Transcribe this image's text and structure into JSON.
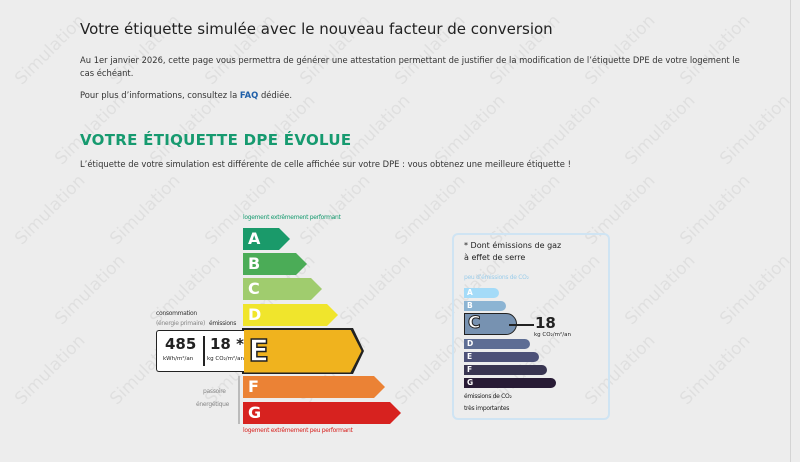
{
  "watermark": "Simulation",
  "header": {
    "title": "Votre étiquette simulée avec le nouveau facteur de conversion",
    "intro": "Au 1er janvier 2026, cette page vous permettra de générer une attestation permettant de justifier de la modification de l’étiquette DPE de votre logement le",
    "intro2": "cas échéant.",
    "info_prefix": "Pour plus d’informations, consultez la ",
    "faq_link": "FAQ",
    "info_suffix": " dédiée."
  },
  "section": {
    "title": "VOTRE ÉTIQUETTE DPE ÉVOLUE",
    "text": "L’étiquette de votre simulation est différente de celle affichée sur votre DPE : vous obtenez une meilleure étiquette !"
  },
  "dpe": {
    "top_label": "logement extrêmement performant",
    "bottom_label": "logement extrêmement peu performant",
    "classes": [
      {
        "letter": "A",
        "color": "#1a9a6a"
      },
      {
        "letter": "B",
        "color": "#4bac57"
      },
      {
        "letter": "C",
        "color": "#a0cc6e"
      },
      {
        "letter": "D",
        "color": "#f0e52c"
      },
      {
        "letter": "E",
        "color": "#f0b31e"
      },
      {
        "letter": "F",
        "color": "#eb8235"
      },
      {
        "letter": "G",
        "color": "#d7221f"
      }
    ],
    "current": "E",
    "consumption_label": "consommation",
    "consumption_sub": "(énergie primaire)",
    "emissions_label": "émissions",
    "consumption_value": "485",
    "consumption_unit": "kWh/m²/an",
    "emissions_value": "18 *",
    "emissions_unit": "kg CO₂/m²/an",
    "passoire_1": "passoire",
    "passoire_2": "énergétique"
  },
  "ges": {
    "title_1": "* Dont émissions de gaz",
    "title_2": "à effet de serre",
    "top_label": "peu d’émissions de CO₂",
    "classes": [
      {
        "letter": "A",
        "color": "#a4dbf8"
      },
      {
        "letter": "B",
        "color": "#8cb4d3"
      },
      {
        "letter": "C",
        "color": "#7792b1"
      },
      {
        "letter": "D",
        "color": "#5d6d94"
      },
      {
        "letter": "E",
        "color": "#4d5178"
      },
      {
        "letter": "F",
        "color": "#393551"
      },
      {
        "letter": "G",
        "color": "#281b35"
      }
    ],
    "current": "C",
    "value": "18",
    "unit": "kg CO₂/m²/an",
    "bottom_1": "émissions de CO₂",
    "bottom_2": "très importantes"
  }
}
